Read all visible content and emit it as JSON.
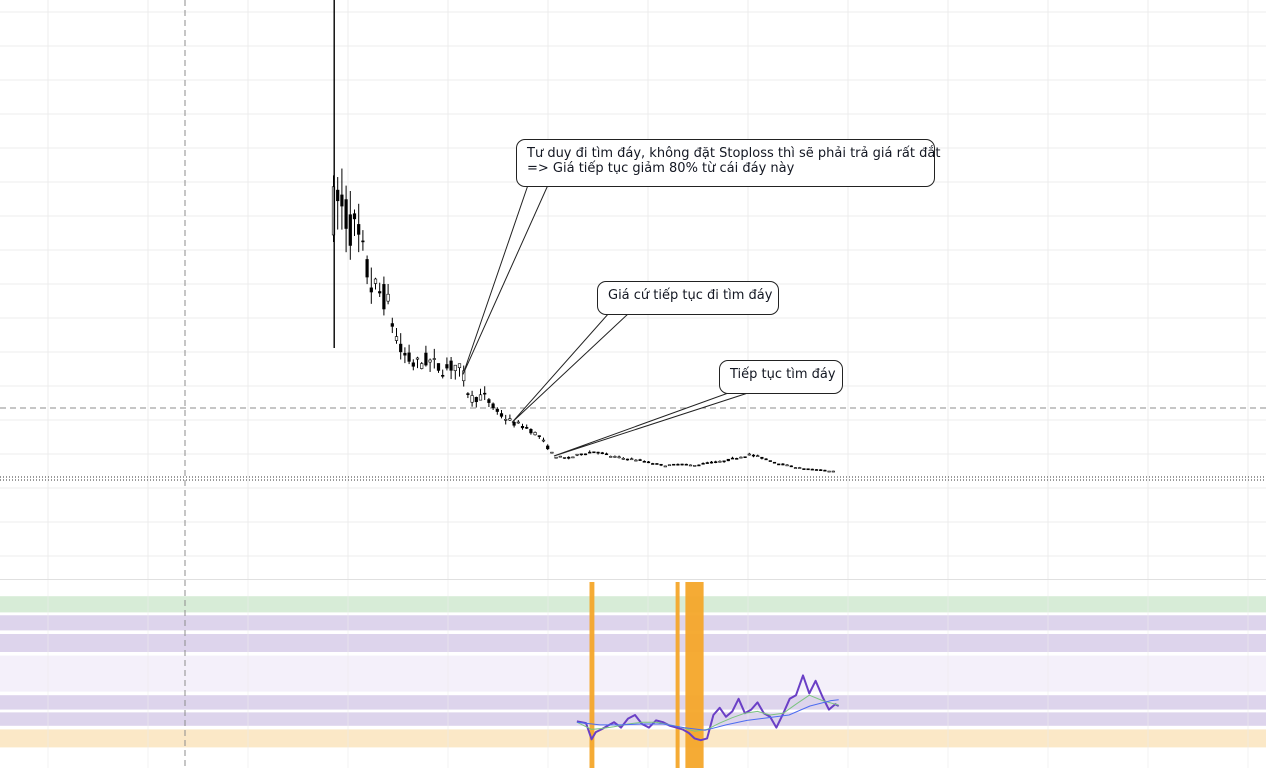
{
  "chart_data": [
    {
      "type": "candlestick",
      "title": "",
      "xlabel": "",
      "ylabel": "",
      "grid": true,
      "colors": {
        "candle": "#000000",
        "grid": "#ececec",
        "crosshair": "#8c8c8c"
      },
      "price_line_style": "dotted",
      "horizontal_guide_style": "dashed",
      "vertical_guide_style": "dashed",
      "x_range": [
        0,
        100
      ],
      "y_range": [
        0,
        100
      ],
      "price_path": [
        {
          "x": 0,
          "y": 55
        },
        {
          "x": 1,
          "y": 58
        },
        {
          "x": 2,
          "y": 56
        },
        {
          "x": 4,
          "y": 50
        },
        {
          "x": 6,
          "y": 40
        },
        {
          "x": 8,
          "y": 38
        },
        {
          "x": 10,
          "y": 27
        },
        {
          "x": 12,
          "y": 24
        },
        {
          "x": 14,
          "y": 25
        },
        {
          "x": 16,
          "y": 23
        },
        {
          "x": 18,
          "y": 24
        },
        {
          "x": 19,
          "y": 22
        },
        {
          "x": 20,
          "y": 17
        },
        {
          "x": 22,
          "y": 17.5
        },
        {
          "x": 24,
          "y": 14
        },
        {
          "x": 26,
          "y": 12
        },
        {
          "x": 28,
          "y": 11
        },
        {
          "x": 30,
          "y": 9
        },
        {
          "x": 31,
          "y": 7
        },
        {
          "x": 32,
          "y": 5
        },
        {
          "x": 34,
          "y": 4.5
        },
        {
          "x": 36,
          "y": 5.5
        },
        {
          "x": 38,
          "y": 6
        },
        {
          "x": 40,
          "y": 5
        },
        {
          "x": 42,
          "y": 4.5
        },
        {
          "x": 44,
          "y": 4.2
        },
        {
          "x": 46,
          "y": 3.5
        },
        {
          "x": 48,
          "y": 3
        },
        {
          "x": 50,
          "y": 3.3
        },
        {
          "x": 52,
          "y": 3.0
        },
        {
          "x": 54,
          "y": 3.6
        },
        {
          "x": 56,
          "y": 3.8
        },
        {
          "x": 58,
          "y": 4.6
        },
        {
          "x": 60,
          "y": 5.3
        },
        {
          "x": 62,
          "y": 4.5
        },
        {
          "x": 64,
          "y": 3.5
        },
        {
          "x": 66,
          "y": 2.8
        },
        {
          "x": 68,
          "y": 2.3
        },
        {
          "x": 70,
          "y": 2.1
        },
        {
          "x": 72,
          "y": 1.8
        }
      ],
      "annotations": [
        {
          "text": "Tư duy đi tìm đáy, không đặt Stoploss thì sẽ phải trả giá rất đắt\n=> Giá tiếp tục giảm 80% từ cái đáy này",
          "target": {
            "x": 19,
            "y": 22
          }
        },
        {
          "text": "Giá cứ tiếp tục đi tìm đáy",
          "target": {
            "x": 26,
            "y": 12
          }
        },
        {
          "text": "Tiếp tục tìm đáy",
          "target": {
            "x": 32,
            "y": 5
          }
        }
      ]
    },
    {
      "type": "line",
      "title": "",
      "xlabel": "",
      "ylabel": "",
      "grid": true,
      "x_range": [
        0,
        100
      ],
      "y_range": [
        0,
        100
      ],
      "colors": {
        "main": "#6a3fc6",
        "fast_ma": "#7bc47f",
        "slow_ma": "#4d6cf0"
      },
      "bands": [
        {
          "from": 82,
          "to": 91,
          "color": "#d7ecd7"
        },
        {
          "from": 72,
          "to": 81,
          "color": "#ddd4ec"
        },
        {
          "from": 60,
          "to": 70,
          "color": "#ddd4ec"
        },
        {
          "from": 38,
          "to": 58,
          "color": "#f4f0fa"
        },
        {
          "from": 28,
          "to": 36,
          "color": "#ddd4ec"
        },
        {
          "from": 19,
          "to": 27,
          "color": "#ddd4ec"
        },
        {
          "from": 7,
          "to": 17,
          "color": "#fbe8c7"
        }
      ],
      "separator_levels": [
        81,
        71,
        59,
        37,
        27,
        18
      ],
      "highlight_zones": [
        {
          "from": 36.5,
          "to": 37.2,
          "color": "#f4a62a"
        },
        {
          "from": 48.8,
          "to": 49.3,
          "color": "#f4a62a"
        },
        {
          "from": 50.2,
          "to": 52.8,
          "color": "#f4a62a"
        }
      ],
      "series": [
        {
          "color_key": "main",
          "x": [
            34.7,
            36.0,
            36.8,
            37.4,
            38.2,
            39.1,
            40.0,
            41.0,
            42.0,
            43.0,
            44.0,
            45.0,
            46.0,
            47.0,
            48.0,
            48.9,
            49.8,
            50.7,
            51.5,
            52.4,
            53.3,
            54.2,
            55.1,
            56.0,
            56.9,
            57.8,
            58.7,
            59.6,
            60.5,
            61.4,
            62.3,
            63.2,
            64.2,
            65.1,
            66.0,
            67.0,
            67.9,
            68.8,
            69.8,
            70.7,
            71.6,
            72.1
          ],
          "y": [
            21.5,
            20.5,
            11.5,
            15.5,
            17,
            19,
            21,
            18,
            23,
            25,
            20,
            18,
            22,
            21,
            19,
            18,
            17,
            15,
            12,
            11,
            12,
            25,
            29,
            24,
            27,
            34,
            26,
            28,
            32,
            26,
            24,
            18,
            26,
            34,
            36,
            47,
            37,
            44,
            35,
            28,
            31,
            30
          ]
        },
        {
          "color_key": "fast_ma",
          "x": [
            34.7,
            36.8,
            38.2,
            40.0,
            42.0,
            44.0,
            46.0,
            48.0,
            49.8,
            51.5,
            53.3,
            55.1,
            56.9,
            58.7,
            60.5,
            62.3,
            64.2,
            66.0,
            67.9,
            69.8,
            71.6,
            72.1
          ],
          "y": [
            21,
            17,
            17.5,
            18.5,
            20,
            21,
            21,
            19.5,
            18,
            16,
            17,
            20.5,
            23.5,
            26,
            27,
            25,
            26,
            31,
            36,
            33,
            31,
            30.5
          ]
        },
        {
          "color_key": "slow_ma",
          "x": [
            34.7,
            38.0,
            41.0,
            44.0,
            47.0,
            50.0,
            53.0,
            56.0,
            59.0,
            62.0,
            65.0,
            68.0,
            71.0,
            72.1
          ],
          "y": [
            21,
            19.5,
            19.5,
            20,
            20,
            18,
            16.5,
            19.5,
            22,
            23.5,
            25,
            30,
            33,
            33.5
          ]
        }
      ]
    }
  ]
}
